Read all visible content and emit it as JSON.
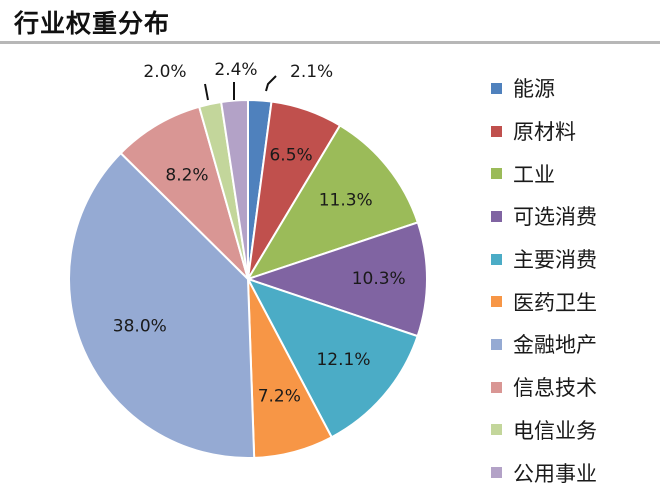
{
  "chart_data": {
    "type": "pie",
    "title": "行业权重分布",
    "slices": [
      {
        "name": "能源",
        "value": 2.1,
        "label": "2.1%",
        "color": "#4F81BD"
      },
      {
        "name": "原材料",
        "value": 6.5,
        "label": "6.5%",
        "color": "#C0504D"
      },
      {
        "name": "工业",
        "value": 11.3,
        "label": "11.3%",
        "color": "#9BBB59"
      },
      {
        "name": "可选消费",
        "value": 10.3,
        "label": "10.3%",
        "color": "#8064A2"
      },
      {
        "name": "主要消费",
        "value": 12.1,
        "label": "12.1%",
        "color": "#4BACC6"
      },
      {
        "name": "医药卫生",
        "value": 7.2,
        "label": "7.2%",
        "color": "#F79646"
      },
      {
        "name": "金融地产",
        "value": 38.0,
        "label": "38.0%",
        "color": "#95AAD3"
      },
      {
        "name": "信息技术",
        "value": 8.2,
        "label": "8.2%",
        "color": "#D99694"
      },
      {
        "name": "电信业务",
        "value": 2.0,
        "label": "2.0%",
        "color": "#C3D69B"
      },
      {
        "name": "公用事业",
        "value": 2.4,
        "label": "2.4%",
        "color": "#B3A2C7"
      }
    ],
    "legend_position": "right",
    "start_angle": "12 o'clock, clockwise"
  }
}
